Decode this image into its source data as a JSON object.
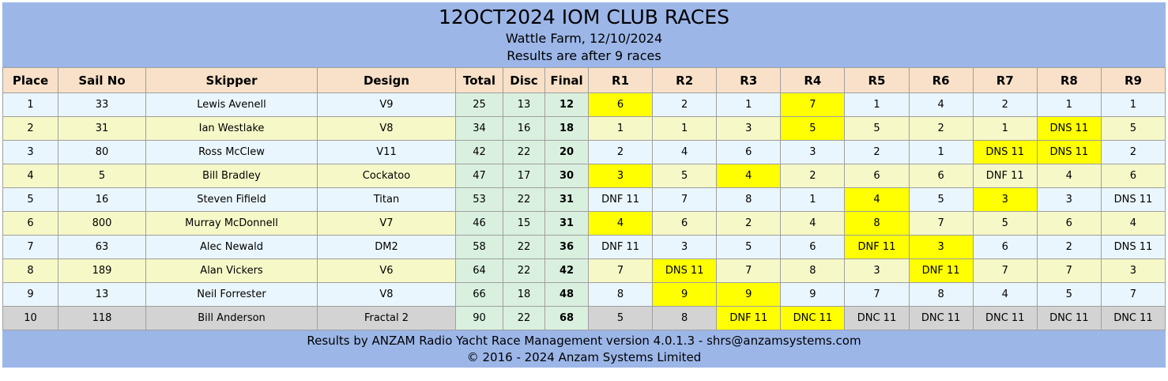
{
  "header": {
    "title": "12OCT2024 IOM CLUB RACES",
    "location_date": "Wattle Farm, 12/10/2024",
    "races_note": "Results are after 9 races"
  },
  "table": {
    "columns": [
      "Place",
      "Sail No",
      "Skipper",
      "Design",
      "Total",
      "Disc",
      "Final",
      "R1",
      "R2",
      "R3",
      "R4",
      "R5",
      "R6",
      "R7",
      "R8",
      "R9"
    ],
    "rows": [
      {
        "place": "1",
        "sail_no": "33",
        "skipper": "Lewis Avenell",
        "design": "V9",
        "total": "25",
        "disc": "13",
        "final": "12",
        "races": [
          "6",
          "2",
          "1",
          "7",
          "1",
          "4",
          "2",
          "1",
          "1"
        ],
        "highlighted": [
          0,
          3
        ],
        "row_style": "blue"
      },
      {
        "place": "2",
        "sail_no": "31",
        "skipper": "Ian Westlake",
        "design": "V8",
        "total": "34",
        "disc": "16",
        "final": "18",
        "races": [
          "1",
          "1",
          "3",
          "5",
          "5",
          "2",
          "1",
          "DNS 11",
          "5"
        ],
        "highlighted": [
          3,
          7
        ],
        "row_style": "yellow"
      },
      {
        "place": "3",
        "sail_no": "80",
        "skipper": "Ross McClew",
        "design": "V11",
        "total": "42",
        "disc": "22",
        "final": "20",
        "races": [
          "2",
          "4",
          "6",
          "3",
          "2",
          "1",
          "DNS 11",
          "DNS 11",
          "2"
        ],
        "highlighted": [
          6,
          7
        ],
        "row_style": "blue"
      },
      {
        "place": "4",
        "sail_no": "5",
        "skipper": "Bill Bradley",
        "design": "Cockatoo",
        "total": "47",
        "disc": "17",
        "final": "30",
        "races": [
          "3",
          "5",
          "4",
          "2",
          "6",
          "6",
          "DNF 11",
          "4",
          "6"
        ],
        "highlighted": [
          0,
          2
        ],
        "row_style": "yellow"
      },
      {
        "place": "5",
        "sail_no": "16",
        "skipper": "Steven Fifield",
        "design": "Titan",
        "total": "53",
        "disc": "22",
        "final": "31",
        "races": [
          "DNF 11",
          "7",
          "8",
          "1",
          "4",
          "5",
          "3",
          "3",
          "DNS 11"
        ],
        "highlighted": [
          4,
          6
        ],
        "row_style": "blue"
      },
      {
        "place": "6",
        "sail_no": "800",
        "skipper": "Murray McDonnell",
        "design": "V7",
        "total": "46",
        "disc": "15",
        "final": "31",
        "races": [
          "4",
          "6",
          "2",
          "4",
          "8",
          "7",
          "5",
          "6",
          "4"
        ],
        "highlighted": [
          0,
          4
        ],
        "row_style": "yellow"
      },
      {
        "place": "7",
        "sail_no": "63",
        "skipper": "Alec Newald",
        "design": "DM2",
        "total": "58",
        "disc": "22",
        "final": "36",
        "races": [
          "DNF 11",
          "3",
          "5",
          "6",
          "DNF 11",
          "3",
          "6",
          "2",
          "DNS 11"
        ],
        "highlighted": [
          4,
          5
        ],
        "row_style": "blue"
      },
      {
        "place": "8",
        "sail_no": "189",
        "skipper": "Alan Vickers",
        "design": "V6",
        "total": "64",
        "disc": "22",
        "final": "42",
        "races": [
          "7",
          "DNS 11",
          "7",
          "8",
          "3",
          "DNF 11",
          "7",
          "7",
          "3"
        ],
        "highlighted": [
          1,
          5
        ],
        "row_style": "yellow"
      },
      {
        "place": "9",
        "sail_no": "13",
        "skipper": "Neil Forrester",
        "design": "V8",
        "total": "66",
        "disc": "18",
        "final": "48",
        "races": [
          "8",
          "9",
          "9",
          "9",
          "7",
          "8",
          "4",
          "5",
          "7"
        ],
        "highlighted": [
          1,
          2
        ],
        "row_style": "blue"
      },
      {
        "place": "10",
        "sail_no": "118",
        "skipper": "Bill Anderson",
        "design": "Fractal 2",
        "total": "90",
        "disc": "22",
        "final": "68",
        "races": [
          "5",
          "8",
          "DNF 11",
          "DNC 11",
          "DNC 11",
          "DNC 11",
          "DNC 11",
          "DNC 11",
          "DNC 11"
        ],
        "highlighted": [
          2,
          3
        ],
        "row_style": "grey"
      }
    ]
  },
  "footer": {
    "credit_line": "Results by ANZAM Radio Yacht Race Management version 4.0.1.3 - shrs@anzamsystems.com",
    "copyright_line": "© 2016 - 2024 Anzam Systems Limited"
  },
  "colors": {
    "banner_bg": "#9CB6E8",
    "table_header_bg": "#F8E1C8",
    "row_blue": "#EAF6FD",
    "row_yellow": "#F6F8C8",
    "row_grey": "#D3D3D3",
    "score_columns_bg": "#DAF0DF",
    "highlight": "#FFFF00"
  }
}
